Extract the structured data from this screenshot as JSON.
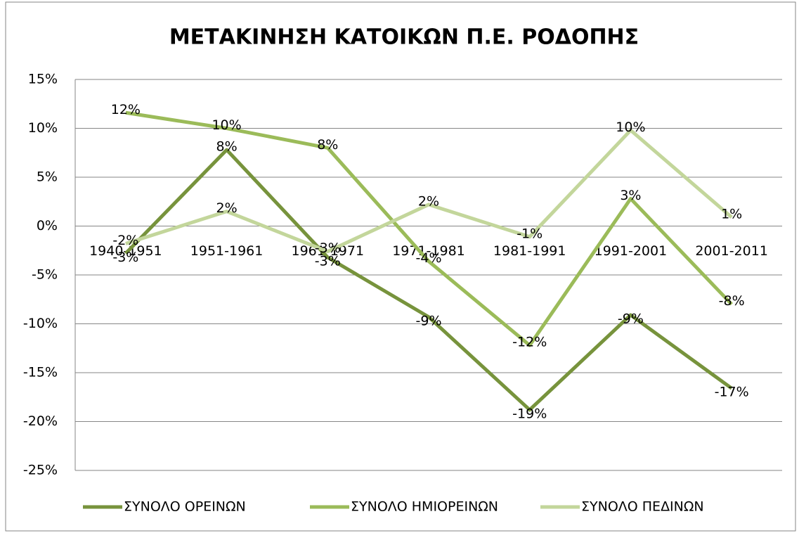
{
  "chart_data": {
    "type": "line",
    "title": "ΜΕΤΑΚΙΝΗΣΗ ΚΑΤΟΙΚΩΝ Π.Ε. ΡΟΔΟΠΗΣ",
    "categories": [
      "1940-1951",
      "1951-1961",
      "1961-1971",
      "1971-1981",
      "1981-1991",
      "1991-2001",
      "2001-2011"
    ],
    "series": [
      {
        "name": "ΣΥΝΟΛΟ ΟΡΕΙΝΩΝ",
        "color": "#77933c",
        "values": [
          -2.8,
          7.8,
          -3.2,
          -9.3,
          -18.8,
          -9.1,
          -16.6
        ],
        "value_labels": [
          "-3%",
          "8%",
          "-3%",
          "-9%",
          "-19%",
          "-9%",
          "-17%"
        ]
      },
      {
        "name": "ΣΥΝΟΛΟ ΗΜΙΟΡΕΙΝΩΝ",
        "color": "#9bbb59",
        "values": [
          11.6,
          10.0,
          8.0,
          -3.6,
          -12.2,
          2.8,
          -8.0
        ],
        "value_labels": [
          "12%",
          "10%",
          "8%",
          "-4%",
          "-12%",
          "3%",
          "-8%"
        ]
      },
      {
        "name": "ΣΥΝΟΛΟ ΠΕΔΙΝΩΝ",
        "color": "#c3d69b",
        "values": [
          -1.8,
          1.5,
          -2.6,
          2.2,
          -1.1,
          9.8,
          0.9
        ],
        "value_labels": [
          "-2%",
          "2%",
          "-3%",
          "2%",
          "-1%",
          "10%",
          "1%"
        ]
      }
    ],
    "ylim": [
      -25,
      15
    ],
    "yticks": [
      {
        "value": -25,
        "label": "-25%"
      },
      {
        "value": -20,
        "label": "-20%"
      },
      {
        "value": -15,
        "label": "-15%"
      },
      {
        "value": -10,
        "label": "-10%"
      },
      {
        "value": -5,
        "label": "-5%"
      },
      {
        "value": 0,
        "label": "0%"
      },
      {
        "value": 5,
        "label": "5%"
      },
      {
        "value": 10,
        "label": "10%"
      },
      {
        "value": 15,
        "label": "15%"
      }
    ],
    "grid": true,
    "legend": "bottom"
  }
}
